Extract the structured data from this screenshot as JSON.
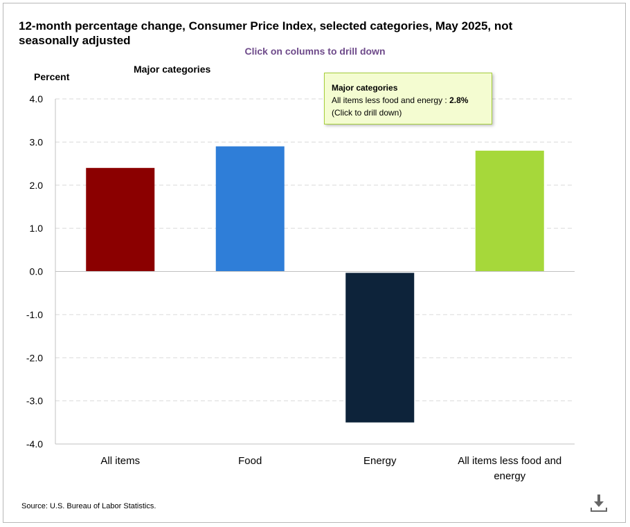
{
  "header": {
    "title": "12-month percentage change, Consumer Price Index, selected categories, May 2025, not seasonally adjusted",
    "subtitle": "Click on columns to drill down",
    "category_label": "Major categories"
  },
  "chart_data": {
    "type": "bar",
    "title": "12-month percentage change, Consumer Price Index, selected categories, May 2025, not seasonally adjusted",
    "ylabel": "Percent",
    "xlabel": "",
    "ylim": [
      -4.0,
      4.0
    ],
    "yticks": [
      "4.0",
      "3.0",
      "2.0",
      "1.0",
      "0.0",
      "-1.0",
      "-2.0",
      "-3.0",
      "-4.0"
    ],
    "yticks_values": [
      4,
      3,
      2,
      1,
      0,
      -1,
      -2,
      -3,
      -4
    ],
    "categories": [
      "All items",
      "Food",
      "Energy",
      "All items less food and energy"
    ],
    "category_lines": [
      [
        "All items"
      ],
      [
        "Food"
      ],
      [
        "Energy"
      ],
      [
        "All items less food and",
        "energy"
      ]
    ],
    "values": [
      2.4,
      2.9,
      -3.5,
      2.8
    ],
    "colors": [
      "#8b0000",
      "#2f7ed8",
      "#0d233a",
      "#a6d83a"
    ],
    "grid": true
  },
  "tooltip": {
    "title": "Major categories",
    "label": "All items less food and energy :",
    "value": "2.8%",
    "hint": "(Click to drill down)"
  },
  "footer": {
    "source": "Source: U.S. Bureau of Labor Statistics."
  },
  "icons": {
    "download": "download-icon"
  }
}
